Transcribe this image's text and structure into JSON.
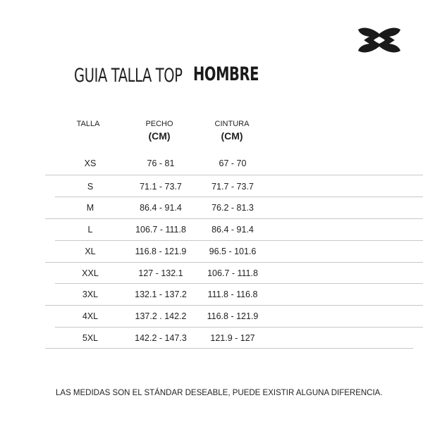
{
  "brand": {
    "logo": "Under Armour logo",
    "color": "#1a1a1a"
  },
  "title": {
    "light": "GUIA TALLA TOP",
    "bold": "HOMBRE"
  },
  "table": {
    "headers": [
      {
        "label": "TALLA",
        "unit": ""
      },
      {
        "label": "PECHO",
        "unit": "(CM)"
      },
      {
        "label": "CINTURA",
        "unit": "(CM)"
      }
    ],
    "rows": [
      [
        "XS",
        "76 - 81",
        "67 - 70"
      ],
      [
        "S",
        "71.1 - 73.7",
        "71.7 - 73.7"
      ],
      [
        "M",
        "86.4 - 91.4",
        "76.2 - 81.3"
      ],
      [
        "L",
        "106.7 - 111.8",
        "86.4 - 91.4"
      ],
      [
        "XL",
        "116.8 - 121.9",
        "96.5 - 101.6"
      ],
      [
        "XXL",
        "127 - 132.1",
        "106.7 - 111.8"
      ],
      [
        "3XL",
        "132.1 - 137.2",
        "111.8 - 116.8"
      ],
      [
        "4XL",
        "137.2 . 142.2",
        "116.8 - 121.9"
      ],
      [
        "5XL",
        "142.2 - 147.3",
        "121.9 - 127"
      ]
    ]
  },
  "note": "LAS MEDIDAS SON EL STÁNDAR DESEABLE, PUEDE EXISTIR ALGUNA DIFERENCIA."
}
